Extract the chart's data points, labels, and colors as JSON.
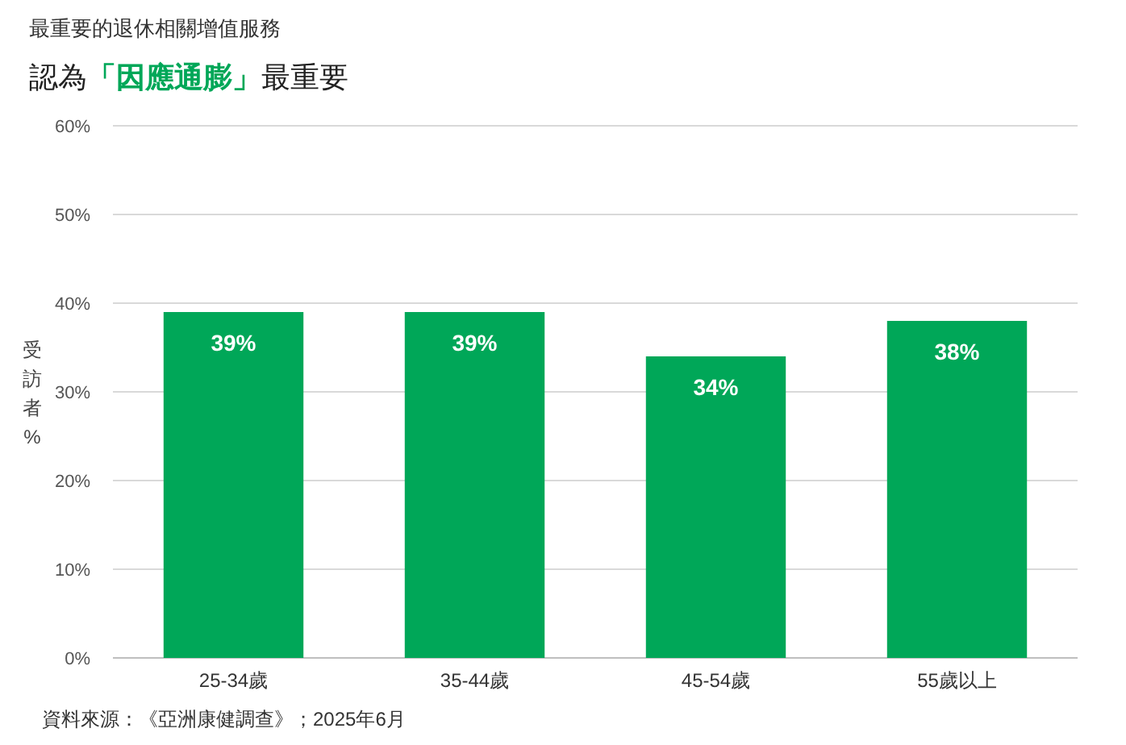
{
  "chart_data": {
    "type": "bar",
    "title": "最重要的退休相關增值服務",
    "subtitle": "認為「因應通膨」最重要",
    "ylabel": "受訪者%",
    "categories": [
      "25-34歲",
      "35-44歲",
      "45-54歲",
      "55歲以上"
    ],
    "values": [
      39,
      39,
      34,
      38
    ],
    "color": "#00a758",
    "value_labels": [
      "39%",
      "39%",
      "34%",
      "38%"
    ],
    "ylim": [
      0,
      60
    ],
    "yticks": [
      {
        "value": 0,
        "label": "0%"
      },
      {
        "value": 10,
        "label": "10%"
      },
      {
        "value": 20,
        "label": "20%"
      },
      {
        "value": 30,
        "label": "30%"
      },
      {
        "value": 40,
        "label": "40%"
      },
      {
        "value": 50,
        "label": "50%"
      },
      {
        "value": 60,
        "label": "60%"
      }
    ],
    "grid": "y",
    "annotations": [
      "資料來源：《亞洲康健調查》；2025年6月"
    ]
  }
}
